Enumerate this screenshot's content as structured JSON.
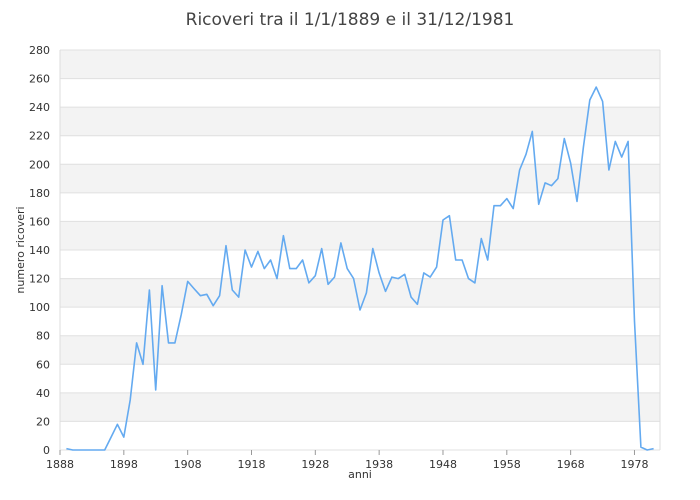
{
  "chart_data": {
    "type": "line",
    "title": "Ricoveri tra il 1/1/1889 e il 31/12/1981",
    "xlabel": "anni",
    "ylabel": "numero ricoveri",
    "xlim": [
      1888,
      1982
    ],
    "ylim": [
      0,
      280
    ],
    "xticks": [
      1888,
      1898,
      1908,
      1918,
      1928,
      1938,
      1948,
      1958,
      1968,
      1978
    ],
    "yticks": [
      0,
      20,
      40,
      60,
      80,
      100,
      120,
      140,
      160,
      180,
      200,
      220,
      240,
      260,
      280
    ],
    "grid": true,
    "legend": "none",
    "line_color": "#64aaf0",
    "x": [
      1889,
      1890,
      1891,
      1892,
      1893,
      1894,
      1895,
      1896,
      1897,
      1898,
      1899,
      1900,
      1901,
      1902,
      1903,
      1904,
      1905,
      1906,
      1907,
      1908,
      1909,
      1910,
      1911,
      1912,
      1913,
      1914,
      1915,
      1916,
      1917,
      1918,
      1919,
      1920,
      1921,
      1922,
      1923,
      1924,
      1925,
      1926,
      1927,
      1928,
      1929,
      1930,
      1931,
      1932,
      1933,
      1934,
      1935,
      1936,
      1937,
      1938,
      1939,
      1940,
      1941,
      1942,
      1943,
      1944,
      1945,
      1946,
      1947,
      1948,
      1949,
      1950,
      1951,
      1952,
      1953,
      1954,
      1955,
      1956,
      1957,
      1958,
      1959,
      1960,
      1961,
      1962,
      1963,
      1964,
      1965,
      1966,
      1967,
      1968,
      1969,
      1970,
      1971,
      1972,
      1973,
      1974,
      1975,
      1976,
      1977,
      1978,
      1979,
      1980,
      1981
    ],
    "y": [
      1,
      0,
      0,
      0,
      0,
      0,
      0,
      9,
      18,
      9,
      35,
      75,
      60,
      112,
      42,
      115,
      75,
      75,
      95,
      118,
      113,
      108,
      109,
      101,
      108,
      143,
      112,
      107,
      140,
      128,
      139,
      127,
      133,
      120,
      150,
      127,
      127,
      133,
      117,
      122,
      141,
      116,
      121,
      145,
      127,
      120,
      98,
      110,
      141,
      124,
      111,
      121,
      120,
      123,
      107,
      102,
      124,
      121,
      128,
      161,
      164,
      133,
      133,
      120,
      117,
      148,
      133,
      171,
      171,
      176,
      169,
      196,
      207,
      223,
      172,
      187,
      185,
      190,
      218,
      201,
      174,
      212,
      245,
      254,
      244,
      196,
      216,
      205,
      216,
      90,
      2,
      0,
      1
    ]
  }
}
